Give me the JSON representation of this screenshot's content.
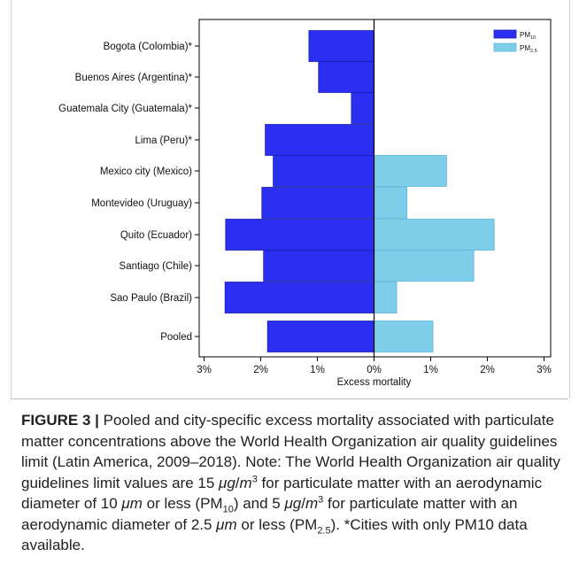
{
  "chart_data": {
    "type": "bar",
    "orientation": "horizontal-pyramid",
    "categories": [
      "Bogota (Colombia)*",
      "Buenos Aires (Argentina)*",
      "Guatemala City (Guatemala)*",
      "Lima (Peru)*",
      "Mexico city (Mexico)",
      "Montevideo (Uruguay)",
      "Quito (Ecuador)",
      "Santiago (Chile)",
      "Sao Paulo (Brazil)",
      "Pooled"
    ],
    "series": [
      {
        "name": "PM10",
        "label_main": "PM",
        "label_sub": "10",
        "side": "left",
        "color": "#2a2ff0",
        "values": [
          1.15,
          0.98,
          0.4,
          1.92,
          1.78,
          1.98,
          2.62,
          1.95,
          2.63,
          1.88
        ]
      },
      {
        "name": "PM2.5",
        "label_main": "PM",
        "label_sub": "2.5",
        "side": "right",
        "color": "#7ecde9",
        "values": [
          null,
          null,
          null,
          null,
          1.28,
          0.58,
          2.12,
          1.76,
          0.4,
          1.04
        ]
      }
    ],
    "xlabel": "Excess mortality",
    "xticks": [
      "3%",
      "2%",
      "1%",
      "0%",
      "1%",
      "2%",
      "3%"
    ],
    "xlim": [
      -3,
      3
    ],
    "legend_position": "top-right"
  },
  "caption": {
    "label": "FIGURE 3 |",
    "p1": " Pooled and city-specific excess mortality associated with particulate matter concentrations above the World Health Organization air quality guidelines limit (Latin America, 2009–2018). Note: The World Health Organization air quality guidelines limit values are 15 ",
    "unit_mu": "μg",
    "unit_slash": "/",
    "unit_m": "m",
    "unit_exp": "3",
    "p2": " for particulate matter with an aerodynamic diameter of 10 ",
    "mu_m": "μm",
    "p3": " or less (PM",
    "sub10": "10",
    "p4": ") and 5 ",
    "p5": " for particulate matter with an aerodynamic diameter of 2.5 ",
    "p6": " or less (PM",
    "sub25": "2.5",
    "p7": "). *Cities with only PM10 data available."
  }
}
